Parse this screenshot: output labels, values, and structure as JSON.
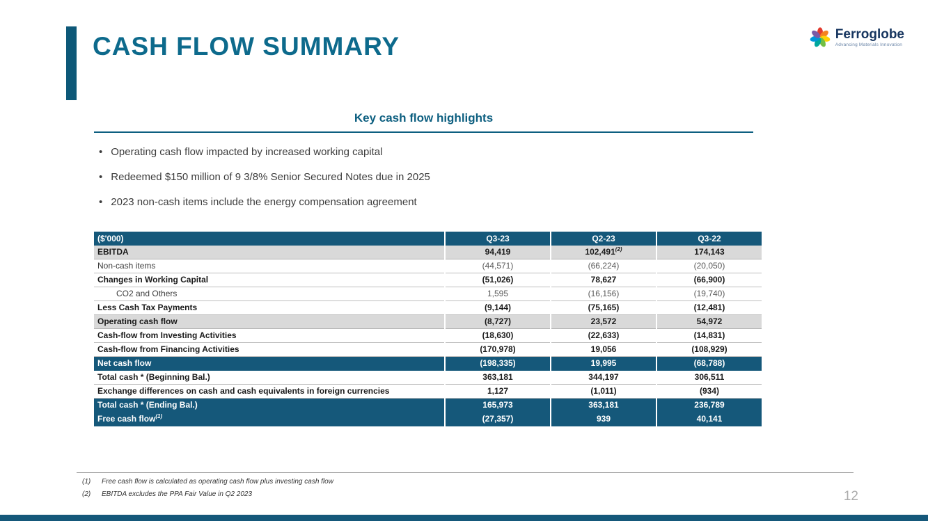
{
  "slide": {
    "title": "CASH FLOW SUMMARY",
    "page_number": "12"
  },
  "logo": {
    "name": "Ferroglobe",
    "tagline": "Advancing Materials Innovation"
  },
  "highlights": {
    "heading": "Key cash flow highlights",
    "bullets": [
      "Operating cash flow impacted by increased working capital",
      "Redeemed $150 million of 9 3/8% Senior Secured Notes due in 2025",
      "2023 non-cash items include the energy compensation agreement"
    ]
  },
  "table": {
    "columns": [
      "($'000)",
      "Q3-23",
      "Q2-23",
      "Q3-22"
    ],
    "rows": [
      {
        "label": "EBITDA",
        "values": [
          "94,419",
          "102,491",
          "174,143"
        ],
        "value_sups": [
          "",
          "(2)",
          ""
        ],
        "type": "subtotal"
      },
      {
        "label": "Non-cash items",
        "values": [
          "(44,571)",
          "(66,224)",
          "(20,050)"
        ],
        "type": "normal"
      },
      {
        "label": "Changes in Working Capital",
        "values": [
          "(51,026)",
          "78,627",
          "(66,900)"
        ],
        "type": "bold"
      },
      {
        "label": "CO2 and Others",
        "values": [
          "1,595",
          "(16,156)",
          "(19,740)"
        ],
        "type": "normal",
        "indent": true
      },
      {
        "label": "Less Cash Tax Payments",
        "values": [
          "(9,144)",
          "(75,165)",
          "(12,481)"
        ],
        "type": "bold"
      },
      {
        "label": "Operating cash flow",
        "values": [
          "(8,727)",
          "23,572",
          "54,972"
        ],
        "type": "subtotal"
      },
      {
        "label": "Cash-flow from Investing Activities",
        "values": [
          "(18,630)",
          "(22,633)",
          "(14,831)"
        ],
        "type": "bold"
      },
      {
        "label": "Cash-flow from Financing Activities",
        "values": [
          "(170,978)",
          "19,056",
          "(108,929)"
        ],
        "type": "bold"
      },
      {
        "label": "Net cash flow",
        "values": [
          "(198,335)",
          "19,995",
          "(68,788)"
        ],
        "type": "dark"
      },
      {
        "label": "Total cash * (Beginning Bal.)",
        "values": [
          "363,181",
          "344,197",
          "306,511"
        ],
        "type": "bold"
      },
      {
        "label": "Exchange differences on cash and cash equivalents in foreign currencies",
        "values": [
          "1,127",
          "(1,011)",
          "(934)"
        ],
        "type": "bold"
      },
      {
        "label": "Total cash * (Ending Bal.)",
        "values": [
          "165,973",
          "363,181",
          "236,789"
        ],
        "type": "dark"
      },
      {
        "label": "Free cash flow",
        "label_sup": "(1)",
        "values": [
          "(27,357)",
          "939",
          "40,141"
        ],
        "type": "dark"
      }
    ]
  },
  "footnotes": [
    {
      "num": "(1)",
      "text": "Free cash flow is calculated as operating cash flow plus investing cash flow"
    },
    {
      "num": "(2)",
      "text": "EBITDA excludes the PPA Fair Value in Q2 2023"
    }
  ],
  "colors": {
    "title_teal": "#0d6a8c",
    "table_dark_blue": "#15587a",
    "subtotal_gray": "#d9d9d9"
  }
}
